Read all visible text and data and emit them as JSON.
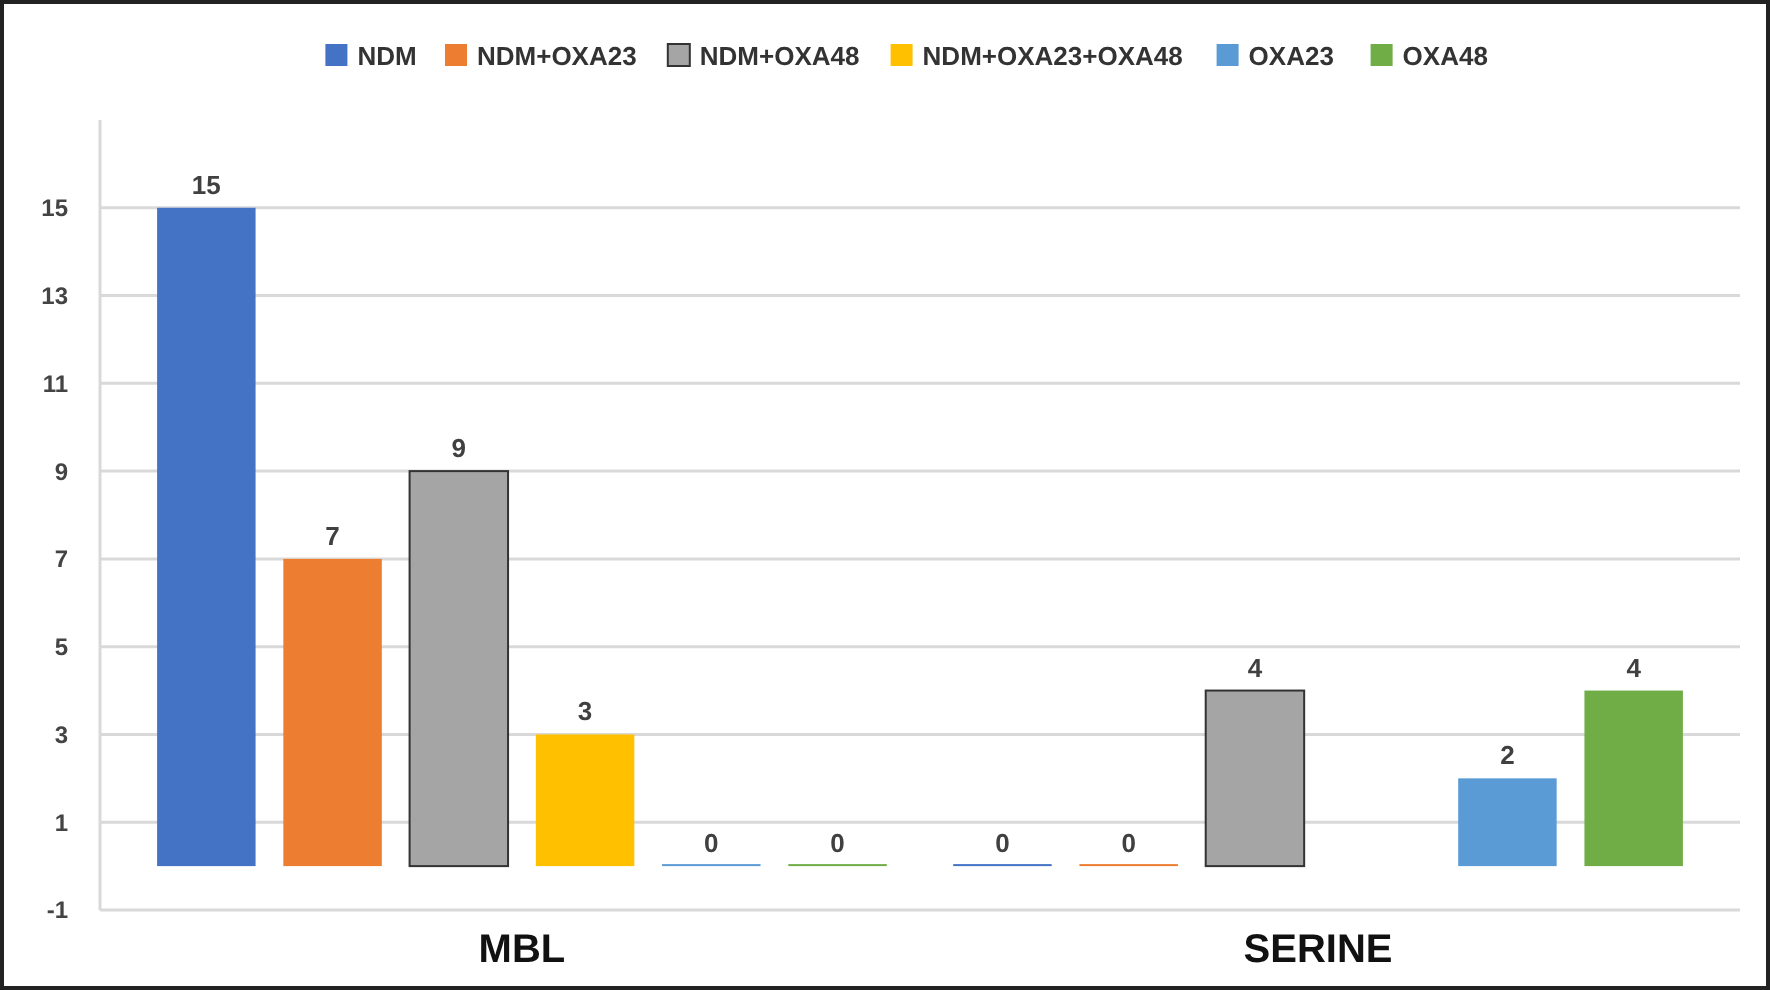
{
  "chart_data": {
    "type": "bar",
    "categories": [
      "MBL",
      "SERINE"
    ],
    "series": [
      {
        "name": "NDM",
        "color": "#4472c4",
        "values": [
          15,
          0
        ],
        "value_labels": [
          "15",
          "0"
        ]
      },
      {
        "name": "NDM+OXA23",
        "color": "#ed7d31",
        "values": [
          7,
          0
        ],
        "value_labels": [
          "7",
          "0"
        ]
      },
      {
        "name": "NDM+OXA48",
        "color": "#a5a5a5",
        "values": [
          9,
          4
        ],
        "value_labels": [
          "9",
          "4"
        ]
      },
      {
        "name": "NDM+OXA23+OXA48",
        "color": "#ffc000",
        "values": [
          3,
          null
        ],
        "value_labels": [
          "3",
          null
        ]
      },
      {
        "name": "OXA23",
        "color": "#5b9bd5",
        "values": [
          0,
          2
        ],
        "value_labels": [
          "0",
          "2"
        ]
      },
      {
        "name": "OXA48",
        "color": "#70ad47",
        "values": [
          0,
          4
        ],
        "value_labels": [
          "0",
          "4"
        ]
      }
    ],
    "ylim": [
      -1,
      17
    ],
    "yticks": [
      -1,
      1,
      3,
      5,
      7,
      9,
      11,
      13,
      15
    ],
    "grid": "y",
    "legend": "top"
  }
}
